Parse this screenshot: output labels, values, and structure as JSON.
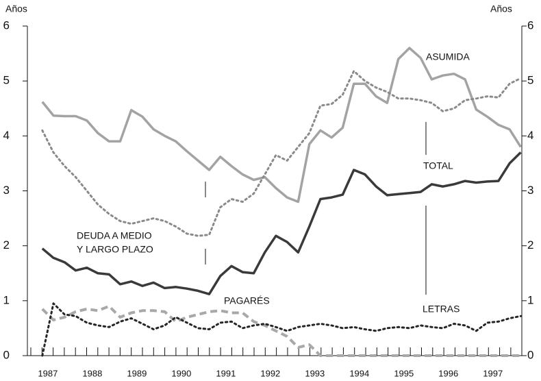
{
  "chart_data": {
    "type": "line",
    "y_axis_label": "Años",
    "y2_axis_label": "Años",
    "x": [
      1986.875,
      1987.125,
      1987.375,
      1987.625,
      1987.875,
      1988.125,
      1988.375,
      1988.625,
      1988.875,
      1989.125,
      1989.375,
      1989.625,
      1989.875,
      1990.125,
      1990.375,
      1990.625,
      1990.875,
      1991.125,
      1991.375,
      1991.625,
      1991.875,
      1992.125,
      1992.375,
      1992.625,
      1992.875,
      1993.125,
      1993.375,
      1993.625,
      1993.875,
      1994.125,
      1994.375,
      1994.625,
      1994.875,
      1995.125,
      1995.375,
      1995.625,
      1995.875,
      1996.125,
      1996.375,
      1996.625,
      1996.875,
      1997.125,
      1997.375,
      1997.625
    ],
    "xlim": [
      1986.54,
      1997.65
    ],
    "xticks": [
      1987,
      1988,
      1989,
      1990,
      1991,
      1992,
      1993,
      1994,
      1995,
      1996,
      1997
    ],
    "ylim": [
      0,
      6
    ],
    "yticks": [
      0,
      1,
      2,
      3,
      4,
      5,
      6
    ],
    "grid": false,
    "series": [
      {
        "name": "ASUMIDA",
        "color": "#a3a3a3",
        "linestyle": "solid",
        "values": [
          4.62,
          4.37,
          4.36,
          4.36,
          4.28,
          4.05,
          3.9,
          3.9,
          4.47,
          4.35,
          4.12,
          4.0,
          3.9,
          3.72,
          3.55,
          3.38,
          3.62,
          3.45,
          3.3,
          3.2,
          3.25,
          3.05,
          2.88,
          2.8,
          3.85,
          4.1,
          3.97,
          4.15,
          4.95,
          4.95,
          4.72,
          4.6,
          5.4,
          5.6,
          5.42,
          5.03,
          5.1,
          5.13,
          5.03,
          4.48,
          4.35,
          4.2,
          4.12,
          3.8
        ]
      },
      {
        "name": "TOTAL",
        "color": "#3a3a3a",
        "linestyle": "solid",
        "values": [
          1.95,
          1.78,
          1.7,
          1.55,
          1.6,
          1.5,
          1.48,
          1.3,
          1.35,
          1.27,
          1.33,
          1.23,
          1.25,
          1.22,
          1.18,
          1.12,
          1.45,
          1.63,
          1.52,
          1.5,
          1.88,
          2.18,
          2.07,
          1.88,
          2.35,
          2.85,
          2.88,
          2.93,
          3.38,
          3.3,
          3.08,
          2.92,
          2.94,
          2.96,
          2.98,
          3.12,
          3.08,
          3.12,
          3.18,
          3.15,
          3.17,
          3.18,
          3.5,
          3.7
        ]
      },
      {
        "name": [
          "DEUDA A MEDIO",
          "Y LARGO PLAZO"
        ],
        "color": "#8a8a8a",
        "linestyle": "dotted",
        "values": [
          4.1,
          3.7,
          3.45,
          3.25,
          3.0,
          2.75,
          2.58,
          2.45,
          2.4,
          2.45,
          2.5,
          2.45,
          2.35,
          2.22,
          2.18,
          2.2,
          2.7,
          2.85,
          2.8,
          2.95,
          3.3,
          3.65,
          3.55,
          3.8,
          4.05,
          4.55,
          4.58,
          4.75,
          5.18,
          5.0,
          4.88,
          4.8,
          4.68,
          4.68,
          4.65,
          4.6,
          4.45,
          4.5,
          4.65,
          4.68,
          4.72,
          4.7,
          4.95,
          5.05
        ]
      },
      {
        "name": "PAGARÉS",
        "color": "#a8a8a8",
        "linestyle": "dashed",
        "values": [
          0.85,
          0.65,
          0.7,
          0.8,
          0.85,
          0.82,
          0.9,
          0.7,
          0.78,
          0.82,
          0.82,
          0.8,
          0.62,
          0.7,
          0.75,
          0.8,
          0.82,
          0.78,
          0.78,
          0.62,
          0.55,
          0.45,
          0.35,
          0.15,
          0.2,
          0,
          0,
          0,
          0,
          0,
          0,
          0,
          0,
          0,
          0,
          0,
          0,
          0,
          0,
          0,
          0,
          0,
          0,
          0
        ]
      },
      {
        "name": "LETRAS",
        "color": "#262626",
        "linestyle": "dotted",
        "values": [
          0,
          0.95,
          0.75,
          0.72,
          0.6,
          0.55,
          0.52,
          0.62,
          0.68,
          0.58,
          0.48,
          0.55,
          0.7,
          0.6,
          0.5,
          0.48,
          0.6,
          0.62,
          0.5,
          0.55,
          0.58,
          0.52,
          0.45,
          0.52,
          0.55,
          0.58,
          0.55,
          0.5,
          0.52,
          0.48,
          0.45,
          0.5,
          0.52,
          0.5,
          0.55,
          0.52,
          0.5,
          0.58,
          0.55,
          0.45,
          0.6,
          0.62,
          0.68,
          0.72
        ]
      }
    ]
  }
}
